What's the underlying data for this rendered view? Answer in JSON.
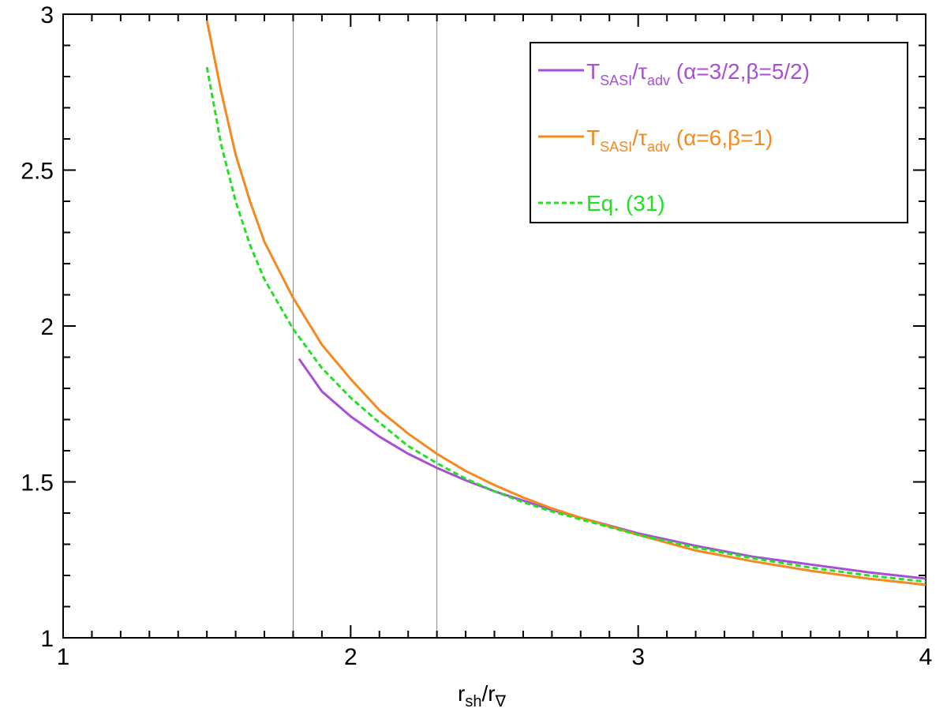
{
  "chart_data": {
    "type": "line",
    "xlabel": {
      "main": "r",
      "sub1": "sh",
      "sep": "/r",
      "sub2": "∇"
    },
    "ylabel": "",
    "xlim": [
      1,
      4
    ],
    "ylim": [
      1,
      3
    ],
    "x_ticks": [
      1,
      2,
      3,
      4
    ],
    "y_ticks": [
      1,
      1.5,
      2,
      2.5,
      3
    ],
    "x_tick_labels": [
      "1",
      "2",
      "3",
      "4"
    ],
    "y_tick_labels": [
      "1",
      "1.5",
      "2",
      "2.5",
      "3"
    ],
    "grid": false,
    "legend_position": "top-right",
    "reference_lines_x": [
      1.8,
      2.3
    ],
    "series": [
      {
        "id": "purple",
        "color": "#a84fd8",
        "dashed": false,
        "legend": {
          "T": "T",
          "sub1": "SASI",
          "slash": "/τ",
          "sub2": "adv",
          "params": " (α=3/2,β=5/2)"
        },
        "x": [
          1.82,
          1.9,
          2.0,
          2.1,
          2.2,
          2.3,
          2.4,
          2.5,
          2.6,
          2.7,
          2.8,
          3.0,
          3.2,
          3.4,
          3.6,
          3.8,
          4.0
        ],
        "y": [
          1.895,
          1.79,
          1.71,
          1.645,
          1.59,
          1.545,
          1.505,
          1.47,
          1.44,
          1.41,
          1.385,
          1.335,
          1.295,
          1.26,
          1.235,
          1.21,
          1.19
        ]
      },
      {
        "id": "orange",
        "color": "#f5891f",
        "dashed": false,
        "legend": {
          "T": "T",
          "sub1": "SASI",
          "slash": "/τ",
          "sub2": "adv",
          "params": " (α=6,β=1)"
        },
        "x": [
          1.5,
          1.55,
          1.6,
          1.65,
          1.7,
          1.8,
          1.9,
          2.0,
          2.1,
          2.2,
          2.3,
          2.4,
          2.5,
          2.6,
          2.7,
          2.8,
          3.0,
          3.2,
          3.4,
          3.6,
          3.8,
          4.0
        ],
        "y": [
          2.98,
          2.75,
          2.55,
          2.4,
          2.27,
          2.09,
          1.94,
          1.83,
          1.73,
          1.655,
          1.59,
          1.535,
          1.49,
          1.45,
          1.415,
          1.385,
          1.33,
          1.28,
          1.245,
          1.215,
          1.19,
          1.17
        ]
      },
      {
        "id": "green",
        "color": "#22e022",
        "dashed": true,
        "legend": {
          "text": "Eq. (31)"
        },
        "x": [
          1.5,
          1.55,
          1.6,
          1.65,
          1.7,
          1.8,
          1.9,
          2.0,
          2.1,
          2.2,
          2.3,
          2.4,
          2.5,
          2.6,
          2.7,
          2.8,
          3.0,
          3.2,
          3.4,
          3.6,
          3.8,
          4.0
        ],
        "y": [
          2.83,
          2.58,
          2.4,
          2.26,
          2.15,
          1.99,
          1.865,
          1.77,
          1.69,
          1.615,
          1.56,
          1.51,
          1.47,
          1.435,
          1.405,
          1.38,
          1.33,
          1.29,
          1.255,
          1.225,
          1.2,
          1.18
        ]
      }
    ]
  }
}
